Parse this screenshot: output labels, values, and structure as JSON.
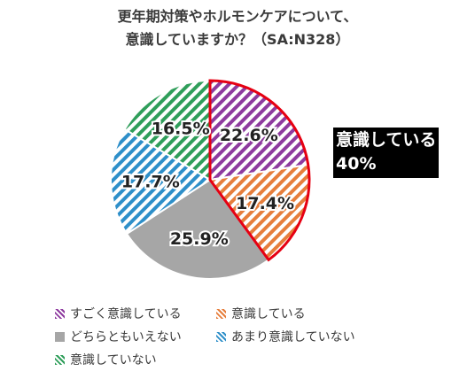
{
  "title_lines": [
    "更年期対策やホルモンケアについて、",
    "意識していますか？（SA:N328）"
  ],
  "callout": {
    "line1": "意識している",
    "line2": "40%"
  },
  "chart_data": {
    "type": "pie",
    "title": "更年期対策やホルモンケアについて、意識していますか？（SA:N328）",
    "slices": [
      {
        "label": "すごく意識している",
        "value": 22.6,
        "value_label": "22.6%",
        "color": "#8e3b9f",
        "pattern": "stripe"
      },
      {
        "label": "意識している",
        "value": 17.4,
        "value_label": "17.4%",
        "color": "#e67e3c",
        "pattern": "stripe"
      },
      {
        "label": "どちらともいえない",
        "value": 25.9,
        "value_label": "25.9%",
        "color": "#a6a6a6",
        "pattern": "solid"
      },
      {
        "label": "あまり意識していない",
        "value": 17.7,
        "value_label": "17.7%",
        "color": "#2e8fc9",
        "pattern": "stripe"
      },
      {
        "label": "意識していない",
        "value": 16.5,
        "value_label": "16.5%",
        "color": "#2f9e5a",
        "pattern": "stripe"
      }
    ],
    "start_angle_deg": 0,
    "direction": "clockwise",
    "highlight": {
      "slices": [
        0,
        1
      ],
      "color": "#e60012"
    },
    "legend_position": "bottom"
  }
}
